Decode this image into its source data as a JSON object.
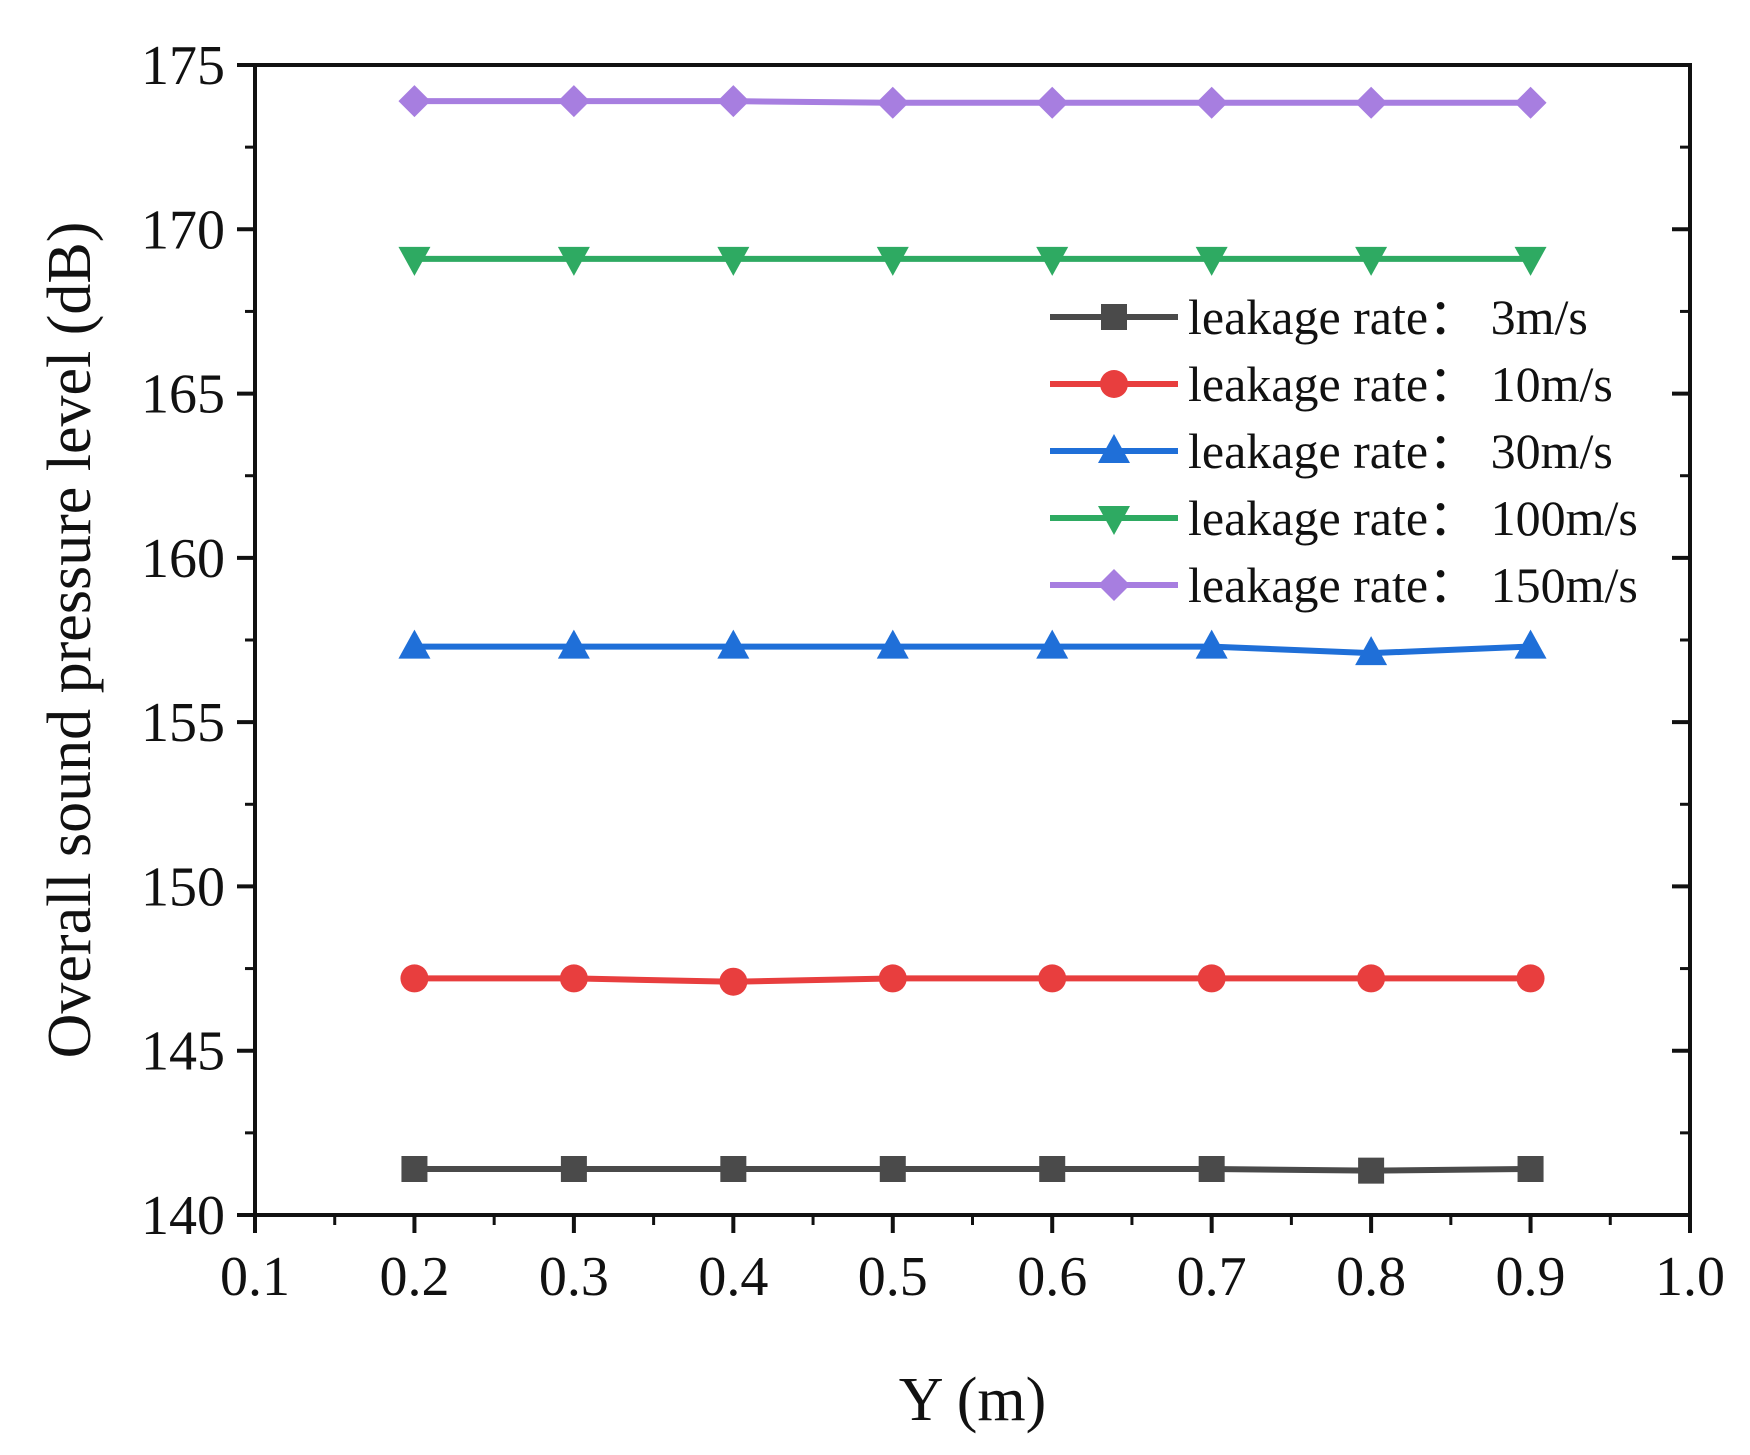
{
  "chart_data": {
    "type": "line",
    "title": "",
    "xlabel": "Y (m)",
    "ylabel": "Overall sound pressure level (dB)",
    "xlim": [
      0.1,
      1.0
    ],
    "ylim": [
      140,
      175
    ],
    "xticks": [
      0.1,
      0.2,
      0.3,
      0.4,
      0.5,
      0.6,
      0.7,
      0.8,
      0.9,
      1.0
    ],
    "xtick_labels": [
      "0.1",
      "0.2",
      "0.3",
      "0.4",
      "0.5",
      "0.6",
      "0.7",
      "0.8",
      "0.9",
      "1.0"
    ],
    "yticks": [
      140,
      145,
      150,
      155,
      160,
      165,
      170,
      175
    ],
    "ytick_labels": [
      "140",
      "145",
      "150",
      "155",
      "160",
      "165",
      "170",
      "175"
    ],
    "grid": false,
    "legend_position": "right",
    "x": [
      0.2,
      0.3,
      0.4,
      0.5,
      0.6,
      0.7,
      0.8,
      0.9
    ],
    "series": [
      {
        "name": "leakage rate：  3m/s",
        "color": "#4a4a4a",
        "marker": "square",
        "values": [
          141.4,
          141.4,
          141.4,
          141.4,
          141.4,
          141.4,
          141.35,
          141.4
        ]
      },
      {
        "name": "leakage rate：  10m/s",
        "color": "#e83e3e",
        "marker": "circle",
        "values": [
          147.2,
          147.2,
          147.1,
          147.2,
          147.2,
          147.2,
          147.2,
          147.2
        ]
      },
      {
        "name": "leakage rate：  30m/s",
        "color": "#1f6fd8",
        "marker": "triangle-up",
        "values": [
          157.3,
          157.3,
          157.3,
          157.3,
          157.3,
          157.3,
          157.1,
          157.3
        ]
      },
      {
        "name": "leakage rate：  100m/s",
        "color": "#2eaa62",
        "marker": "triangle-down",
        "values": [
          169.1,
          169.1,
          169.1,
          169.1,
          169.1,
          169.1,
          169.1,
          169.1
        ]
      },
      {
        "name": "leakage rate：  150m/s",
        "color": "#a77ee0",
        "marker": "diamond",
        "values": [
          173.9,
          173.9,
          173.9,
          173.85,
          173.85,
          173.85,
          173.85,
          173.85
        ]
      }
    ]
  }
}
